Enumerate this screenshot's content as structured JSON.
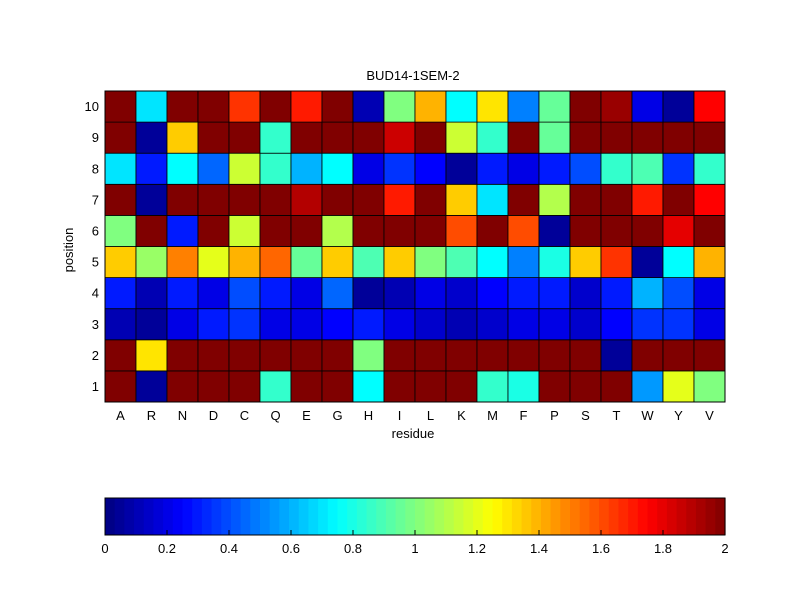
{
  "chart_data": {
    "type": "heatmap",
    "title": "BUD14-1SEM-2",
    "xlabel": "residue",
    "ylabel": "position",
    "x_categories": [
      "A",
      "R",
      "N",
      "D",
      "C",
      "Q",
      "E",
      "G",
      "H",
      "I",
      "L",
      "K",
      "M",
      "F",
      "P",
      "S",
      "T",
      "W",
      "Y",
      "V"
    ],
    "y_categories": [
      "1",
      "2",
      "3",
      "4",
      "5",
      "6",
      "7",
      "8",
      "9",
      "10"
    ],
    "colormap": "jet",
    "clim": [
      0,
      2
    ],
    "colorbar_ticks": [
      "0",
      "0.2",
      "0.4",
      "0.6",
      "0.8",
      "1",
      "1.2",
      "1.4",
      "1.6",
      "1.8",
      "2"
    ],
    "colorbar_position": "bottom",
    "values": [
      [
        2.0,
        0.05,
        2.0,
        2.0,
        2.0,
        0.85,
        2.0,
        2.0,
        0.75,
        2.0,
        2.0,
        2.0,
        0.85,
        0.8,
        2.0,
        2.0,
        2.0,
        0.55,
        1.2,
        1.0
      ],
      [
        2.0,
        1.3,
        2.0,
        2.0,
        2.0,
        2.0,
        2.0,
        2.0,
        1.0,
        2.0,
        2.0,
        2.0,
        2.0,
        2.0,
        2.0,
        2.0,
        0.05,
        2.0,
        2.0,
        2.0
      ],
      [
        0.1,
        0.05,
        0.2,
        0.3,
        0.35,
        0.2,
        0.2,
        0.25,
        0.3,
        0.2,
        0.15,
        0.1,
        0.15,
        0.2,
        0.2,
        0.15,
        0.25,
        0.35,
        0.35,
        0.2
      ],
      [
        0.3,
        0.1,
        0.3,
        0.2,
        0.4,
        0.3,
        0.2,
        0.45,
        0.05,
        0.1,
        0.2,
        0.15,
        0.25,
        0.3,
        0.3,
        0.15,
        0.3,
        0.6,
        0.4,
        0.2
      ],
      [
        1.35,
        1.05,
        1.5,
        1.2,
        1.4,
        1.55,
        0.95,
        1.35,
        0.9,
        1.35,
        1.0,
        0.9,
        0.75,
        0.5,
        0.8,
        1.35,
        1.65,
        0.05,
        0.75,
        1.4
      ],
      [
        1.0,
        2.0,
        0.3,
        2.0,
        1.15,
        2.0,
        2.0,
        1.1,
        2.0,
        2.0,
        2.0,
        1.6,
        2.0,
        1.6,
        0.05,
        2.0,
        2.0,
        2.0,
        1.8,
        2.0
      ],
      [
        2.0,
        0.05,
        2.0,
        2.0,
        2.0,
        2.0,
        1.9,
        2.0,
        2.0,
        1.7,
        2.0,
        1.35,
        0.7,
        2.0,
        1.1,
        2.0,
        2.0,
        1.7,
        2.0,
        1.75
      ],
      [
        0.7,
        0.3,
        0.75,
        0.45,
        1.15,
        0.85,
        0.6,
        0.75,
        0.2,
        0.35,
        0.25,
        0.05,
        0.3,
        0.2,
        0.3,
        0.4,
        0.85,
        0.9,
        0.35,
        0.85
      ],
      [
        2.0,
        0.05,
        1.35,
        2.0,
        2.0,
        0.85,
        2.0,
        2.0,
        2.0,
        1.85,
        2.0,
        1.15,
        0.85,
        2.0,
        0.95,
        2.0,
        2.0,
        2.0,
        2.0,
        2.0
      ],
      [
        2.0,
        0.7,
        2.0,
        2.0,
        1.65,
        2.0,
        1.7,
        2.0,
        0.1,
        1.0,
        1.4,
        0.75,
        1.3,
        0.5,
        0.95,
        2.0,
        1.95,
        0.2,
        0.05,
        1.75
      ]
    ]
  }
}
